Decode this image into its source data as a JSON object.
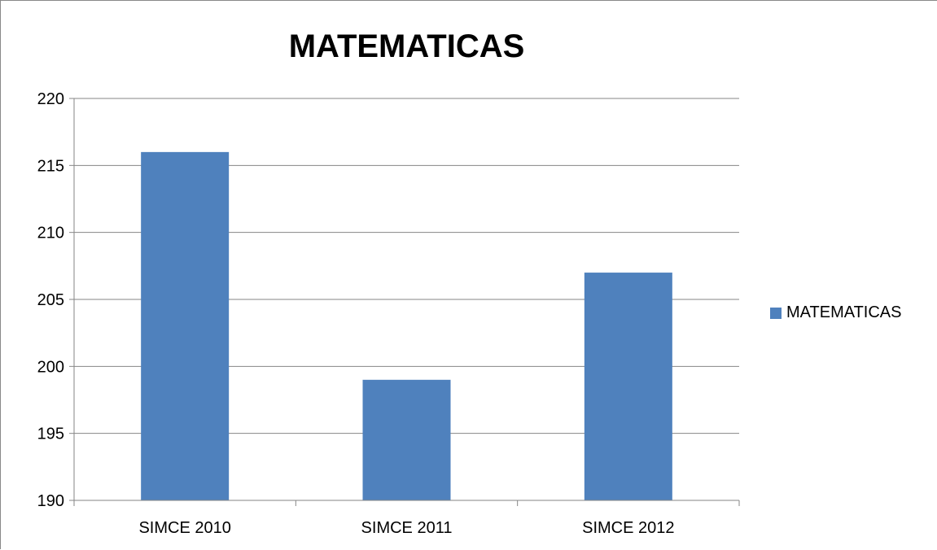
{
  "chart_data": {
    "type": "bar",
    "title": "MATEMATICAS",
    "categories": [
      "SIMCE 2010",
      "SIMCE 2011",
      "SIMCE 2012"
    ],
    "series": [
      {
        "name": "MATEMATICAS",
        "values": [
          216,
          199,
          207
        ],
        "color": "#4F81BD"
      }
    ],
    "xlabel": "",
    "ylabel": "",
    "ylim": [
      190,
      220
    ],
    "yticks": [
      220,
      215,
      210,
      205,
      200,
      195,
      190
    ],
    "grid": true,
    "legend_position": "right"
  }
}
